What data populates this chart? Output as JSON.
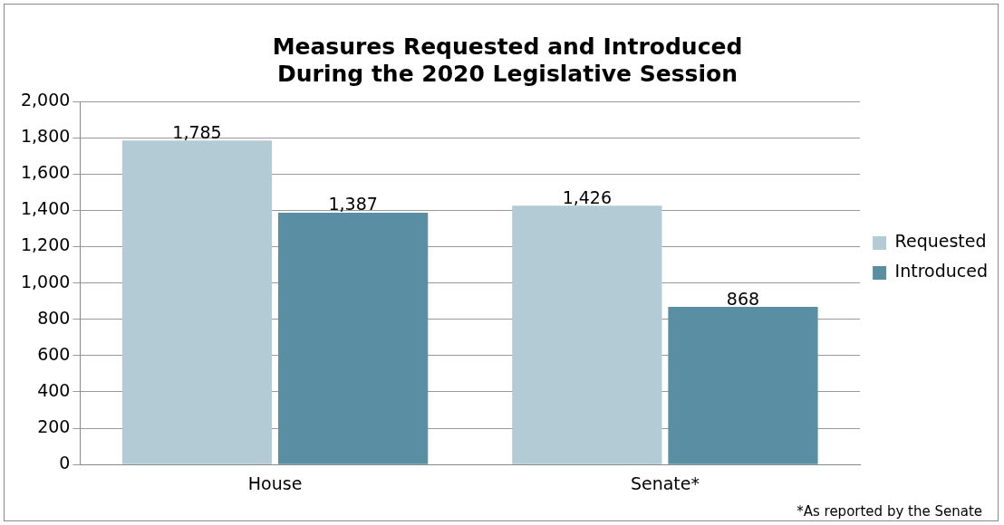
{
  "chart_data": {
    "type": "bar",
    "title": "Measures Requested and Introduced\nDuring the 2020 Legislative Session",
    "categories": [
      "House",
      "Senate*"
    ],
    "series": [
      {
        "name": "Requested",
        "color": "#b3cbd5",
        "values": [
          1785,
          1426
        ],
        "value_labels": [
          "1,785",
          "1,426"
        ]
      },
      {
        "name": "Introduced",
        "color": "#5a8fa3",
        "values": [
          1387,
          868
        ],
        "value_labels": [
          "1,387",
          "868"
        ]
      }
    ],
    "ylim": [
      0,
      2000
    ],
    "yticks": [
      0,
      200,
      400,
      600,
      800,
      {
        "value": 1000,
        "label": "1,000"
      },
      {
        "value": 1200,
        "label": "1,200"
      },
      {
        "value": 1400,
        "label": "1,400"
      },
      {
        "value": 1600,
        "label": "1,600"
      },
      {
        "value": 1800,
        "label": "1,800"
      },
      {
        "value": 2000,
        "label": "2,000"
      }
    ],
    "grid": "y",
    "legend": "right",
    "annotations": [
      "*As reported by the Senate"
    ]
  }
}
